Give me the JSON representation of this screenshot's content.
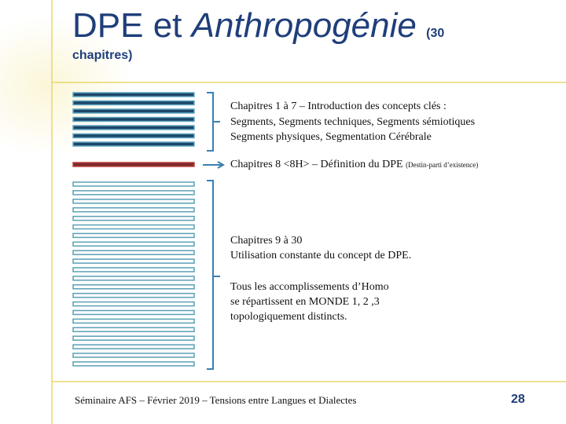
{
  "title": {
    "main": "DPE et ",
    "italic": "Anthropogénie",
    "small": "(30",
    "second_line": "chapitres)"
  },
  "groups": [
    {
      "lines": [
        "Chapitres 1 à 7 – Introduction des concepts clés :",
        "Segments, Segments techniques, Segments sémiotiques",
        "Segments physiques, Segmentation Cérébrale"
      ]
    },
    {
      "main": "Chapitres 8 <8H> – Définition du DPE",
      "note": "(Destin-parti d’existence)"
    },
    {
      "lines": [
        "Chapitres 9 à 30",
        "Utilisation constante du concept de DPE."
      ]
    },
    {
      "lines": [
        "Tous les accomplissements d’Homo",
        "se répartissent en MONDE 1, 2 ,3",
        "topologiquement distincts."
      ]
    }
  ],
  "footer": {
    "text": "Séminaire AFS – Février 2019 – Tensions entre Langues et Dialectes",
    "page": "28"
  }
}
